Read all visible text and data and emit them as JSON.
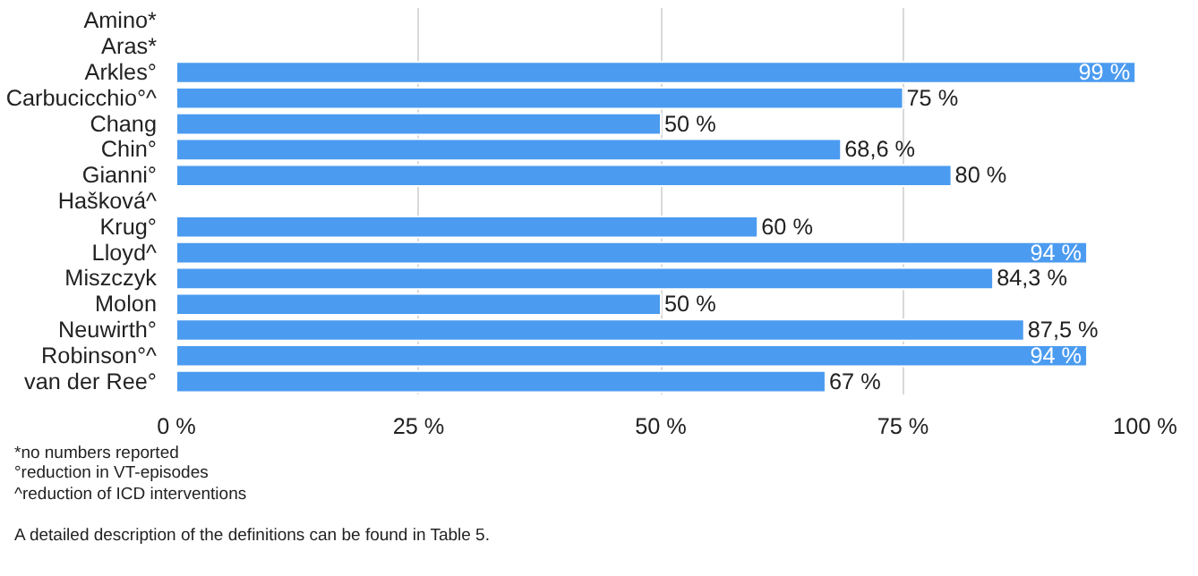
{
  "chart_data": {
    "type": "bar",
    "orientation": "horizontal",
    "categories": [
      "Amino*",
      "Aras*",
      "Arkles°",
      "Carbucicchio°^",
      "Chang",
      "Chin°",
      "Gianni°",
      "Hašková^",
      "Krug°",
      "Lloyd^",
      "Miszczyk",
      "Molon",
      "Neuwirth°",
      "Robinson°^",
      "van der Ree°"
    ],
    "values": [
      null,
      null,
      99,
      75,
      50,
      68.6,
      80,
      null,
      60,
      94,
      84.3,
      50,
      87.5,
      94,
      67
    ],
    "value_labels": [
      null,
      null,
      "99 %",
      "75 %",
      "50 %",
      "68,6 %",
      "80 %",
      null,
      "60 %",
      "94 %",
      "84,3 %",
      "50 %",
      "87,5 %",
      "94 %",
      "67 %"
    ],
    "color": "#4b9bf0",
    "xlim": [
      0,
      100
    ],
    "xticks": [
      {
        "value": 0,
        "label": "0 %"
      },
      {
        "value": 25,
        "label": "25 %"
      },
      {
        "value": 50,
        "label": "50 %"
      },
      {
        "value": 75,
        "label": "75 %"
      },
      {
        "value": 100,
        "label": "100 %"
      }
    ],
    "grid": "x",
    "annotations": [
      "*no numbers reported",
      "°reduction in VT-episodes",
      "^reduction of ICD interventions",
      "A detailed description of the definitions can be found in Table 5."
    ]
  }
}
